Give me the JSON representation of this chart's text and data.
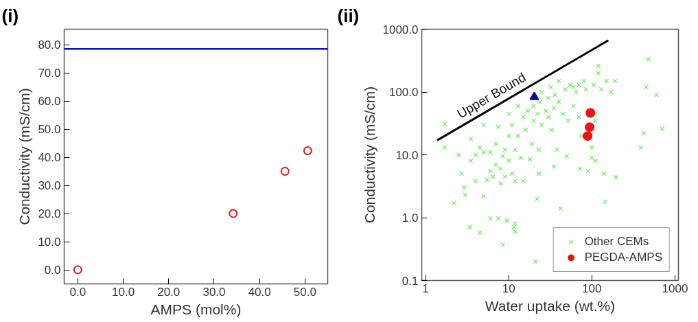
{
  "chart_data": [
    {
      "type": "scatter",
      "annotations": [
        "(i)"
      ],
      "xlabel": "AMPS (mol%)",
      "ylabel": "Conductivity (mS/cm)",
      "xlim": [
        -3,
        55
      ],
      "ylim": [
        -5,
        85.5
      ],
      "xticks": [
        {
          "value": 0,
          "label": "0.0"
        },
        {
          "value": 10,
          "label": "10.0"
        },
        {
          "value": 20,
          "label": "20.0"
        },
        {
          "value": 30,
          "label": "30.0"
        },
        {
          "value": 40,
          "label": "40.0"
        },
        {
          "value": 50,
          "label": "50.0"
        }
      ],
      "yticks": [
        {
          "value": 0,
          "label": "0.0"
        },
        {
          "value": 10,
          "label": "10.0"
        },
        {
          "value": 20,
          "label": "20.0"
        },
        {
          "value": 30,
          "label": "30.0"
        },
        {
          "value": 40,
          "label": "40.0"
        },
        {
          "value": 50,
          "label": "50.0"
        },
        {
          "value": 60,
          "label": "60.0"
        },
        {
          "value": 70,
          "label": "70.0"
        },
        {
          "value": 80,
          "label": "80.0"
        }
      ],
      "marker": "circle",
      "grid": false,
      "legend": false,
      "series": [
        {
          "color": "#ee1111",
          "x": [
            0,
            34.2,
            45.6,
            50.6
          ],
          "values": [
            0,
            20,
            35,
            42.3
          ]
        }
      ],
      "ref_lines": [
        {
          "axis": "y",
          "value": 78.5,
          "color": "#0a0ae0"
        }
      ]
    },
    {
      "type": "scatter",
      "annotations": [
        "(ii)",
        "Upper Bound"
      ],
      "xlabel": "Water uptake (wt.%)",
      "ylabel": "Conductivity (mS/cm)",
      "log": "xy",
      "xlim": [
        0.9,
        1100
      ],
      "ylim": [
        0.1,
        1000
      ],
      "xticks": [
        1,
        10,
        100,
        1000
      ],
      "yticks": [
        {
          "value": 0.1,
          "label": "0.1"
        },
        {
          "value": 1,
          "label": "1.0"
        },
        {
          "value": 10,
          "label": "10.0"
        },
        {
          "value": 100,
          "label": "100.0"
        },
        {
          "value": 1000,
          "label": "1000.0"
        }
      ],
      "grid": false,
      "legend": "bottom right",
      "series": [
        {
          "name": "Other CEMs",
          "type": "scatter",
          "marker": "cross",
          "color": "#66ee55",
          "x": [
            1.7,
            1.7,
            2.2,
            2.5,
            2.7,
            2.9,
            3,
            3.4,
            3.5,
            3.5,
            4,
            4,
            4.5,
            4.5,
            5,
            5,
            5,
            5.5,
            6,
            6,
            6,
            6.5,
            7,
            7,
            7.5,
            7.5,
            8,
            8,
            8.5,
            8.5,
            9,
            9,
            9.5,
            10,
            10,
            10,
            11,
            11,
            11.5,
            12,
            12,
            12,
            12,
            13,
            13,
            14,
            15,
            15,
            16,
            17,
            18,
            19,
            20,
            20,
            21,
            22,
            22,
            23,
            23,
            24,
            25,
            25,
            28,
            30,
            30,
            32,
            33,
            35,
            35,
            36,
            38,
            40,
            40,
            42,
            45,
            48,
            50,
            52,
            55,
            60,
            65,
            70,
            72,
            75,
            80,
            85,
            100,
            105,
            110,
            110,
            120,
            130,
            140,
            145,
            150,
            170,
            190,
            195,
            390,
            420,
            450,
            480,
            600,
            700,
            120,
            100,
            110,
            90,
            60,
            70
          ],
          "values": [
            31,
            13,
            1.7,
            10,
            5,
            3,
            2.3,
            0.7,
            18,
            8,
            10,
            3.8,
            0.58,
            13,
            2.2,
            30,
            11,
            4,
            5.5,
            0.97,
            11,
            4.5,
            15,
            7,
            0.98,
            28,
            3.5,
            6,
            0.37,
            9.5,
            12,
            4.5,
            0.9,
            45,
            20,
            8,
            30,
            5,
            0.7,
            0.8,
            0.6,
            12,
            3.8,
            60,
            20,
            9,
            40,
            3.8,
            25,
            50,
            8.5,
            15,
            60,
            35,
            0.2,
            45,
            2,
            12,
            5,
            70,
            30,
            100,
            50,
            80,
            40,
            120,
            25,
            55,
            6.5,
            90,
            12,
            150,
            70,
            1.4,
            45,
            110,
            9.5,
            35,
            130,
            60,
            100,
            40,
            6,
            20,
            150,
            110,
            9,
            130,
            45,
            35,
            200,
            110,
            5,
            1.8,
            150,
            100,
            150,
            4.4,
            13,
            22,
            120,
            330,
            90,
            26,
            260,
            13,
            8,
            5.5,
            120,
            130
          ]
        },
        {
          "type": "scatter",
          "marker": "triangle",
          "color": "#0a0aa0",
          "x": [
            20.3
          ],
          "values": [
            83
          ]
        },
        {
          "name": "PEGDA-AMPS",
          "type": "scatter",
          "marker": "circle",
          "color": "#ee1111",
          "x": [
            96,
            94,
            89
          ],
          "values": [
            46.5,
            27.5,
            19.9
          ]
        },
        {
          "type": "line",
          "color": "#000000",
          "x": [
            1.38,
            158
          ],
          "values": [
            17,
            665
          ]
        }
      ]
    }
  ]
}
